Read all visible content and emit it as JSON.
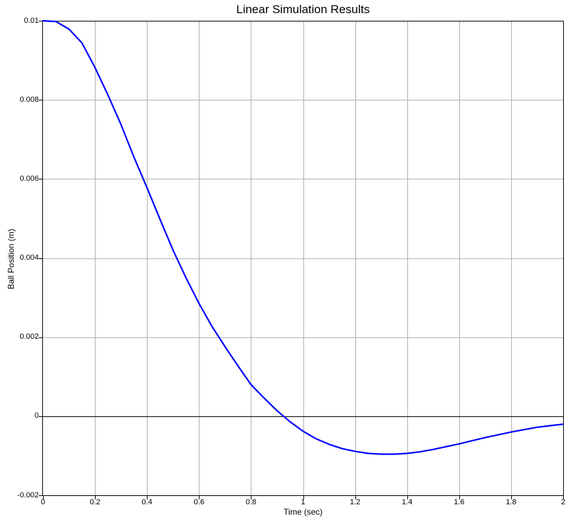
{
  "chart_data": {
    "type": "line",
    "title": "Linear Simulation Results",
    "xlabel": "Time (sec)",
    "ylabel": "Ball Position (m)",
    "xlim": [
      0,
      2
    ],
    "ylim": [
      -0.002,
      0.01
    ],
    "xticks": [
      0,
      0.2,
      0.4,
      0.6,
      0.8,
      1,
      1.2,
      1.4,
      1.6,
      1.8,
      2
    ],
    "xtick_labels": [
      "0",
      "0.2",
      "0.4",
      "0.6",
      "0.8",
      "1",
      "1.2",
      "1.4",
      "1.6",
      "1.8",
      "2"
    ],
    "yticks": [
      0.01,
      0.008,
      0.006,
      0.004,
      0.002,
      0,
      -0.002
    ],
    "ytick_labels": [
      "0.01",
      "0.008",
      "0.006",
      "0.004",
      "0.002",
      "0",
      "-0.002"
    ],
    "grid": true,
    "zero_line": true,
    "legend": "none",
    "colors": {
      "line": "#0000ff",
      "grid": "#b2b2b2",
      "axis": "#000000",
      "zero_line": "#000000",
      "background": "#ffffff"
    },
    "series": [
      {
        "name": "ball-position",
        "color": "#0000ff",
        "x": [
          0,
          0.05,
          0.1,
          0.15,
          0.2,
          0.25,
          0.3,
          0.35,
          0.4,
          0.45,
          0.5,
          0.55,
          0.6,
          0.65,
          0.7,
          0.75,
          0.8,
          0.85,
          0.9,
          0.95,
          1.0,
          1.05,
          1.1,
          1.15,
          1.2,
          1.25,
          1.3,
          1.35,
          1.4,
          1.45,
          1.5,
          1.55,
          1.6,
          1.65,
          1.7,
          1.75,
          1.8,
          1.85,
          1.9,
          1.95,
          2.0
        ],
        "y": [
          0.01,
          0.00998,
          0.00979,
          0.00944,
          0.00882,
          0.00812,
          0.00738,
          0.00655,
          0.00578,
          0.00498,
          0.0042,
          0.0035,
          0.00285,
          0.00227,
          0.00176,
          0.00127,
          0.0008,
          0.00046,
          0.00014,
          -0.00014,
          -0.00038,
          -0.00057,
          -0.00071,
          -0.00082,
          -0.00089,
          -0.00094,
          -0.00096,
          -0.00096,
          -0.00094,
          -0.0009,
          -0.00084,
          -0.00077,
          -0.0007,
          -0.00062,
          -0.00054,
          -0.00047,
          -0.0004,
          -0.00034,
          -0.00028,
          -0.00024,
          -0.0002
        ]
      }
    ],
    "annotations": {
      "zero_crossing_t": 0.92,
      "minimum": {
        "t": 1.32,
        "y": -0.00096
      }
    }
  }
}
